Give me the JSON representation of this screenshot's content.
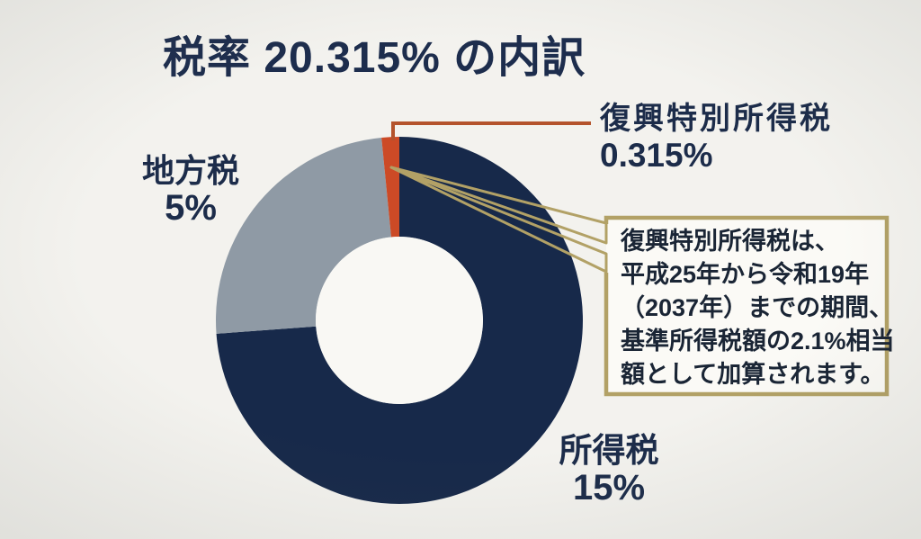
{
  "title": "税率 20.315% の内訳",
  "chart_data": {
    "type": "pie",
    "subtype": "donut",
    "title": "税率 20.315% の内訳",
    "unit": "%",
    "total": 20.315,
    "start_angle_deg": 0,
    "direction": "clockwise",
    "legend_position": "labels-around-chart",
    "series": [
      {
        "name": "所得税",
        "value": 15,
        "display": "15%",
        "color": "#17294a"
      },
      {
        "name": "地方税",
        "value": 5,
        "display": "5%",
        "color": "#8f9aa5"
      },
      {
        "name": "復興特別所得税",
        "value": 0.315,
        "display": "0.315%",
        "color": "#cc4a26"
      }
    ]
  },
  "callout": {
    "lines": [
      "復興特別所得税は、",
      "平成25年から令和19年",
      "（2037年）までの期間、",
      "基準所得税額の2.1%相当",
      "額として加算されます。"
    ]
  },
  "colors": {
    "background": "#f3f2ee",
    "title_text": "#1d2d4d",
    "label_text": "#1c2c4a",
    "leader_line": "#b4532c",
    "callout_border": "#b2a166",
    "callout_fill": "#fbfaf6",
    "callout_text": "#1a2535",
    "donut_hole": "#f9f8f4"
  }
}
